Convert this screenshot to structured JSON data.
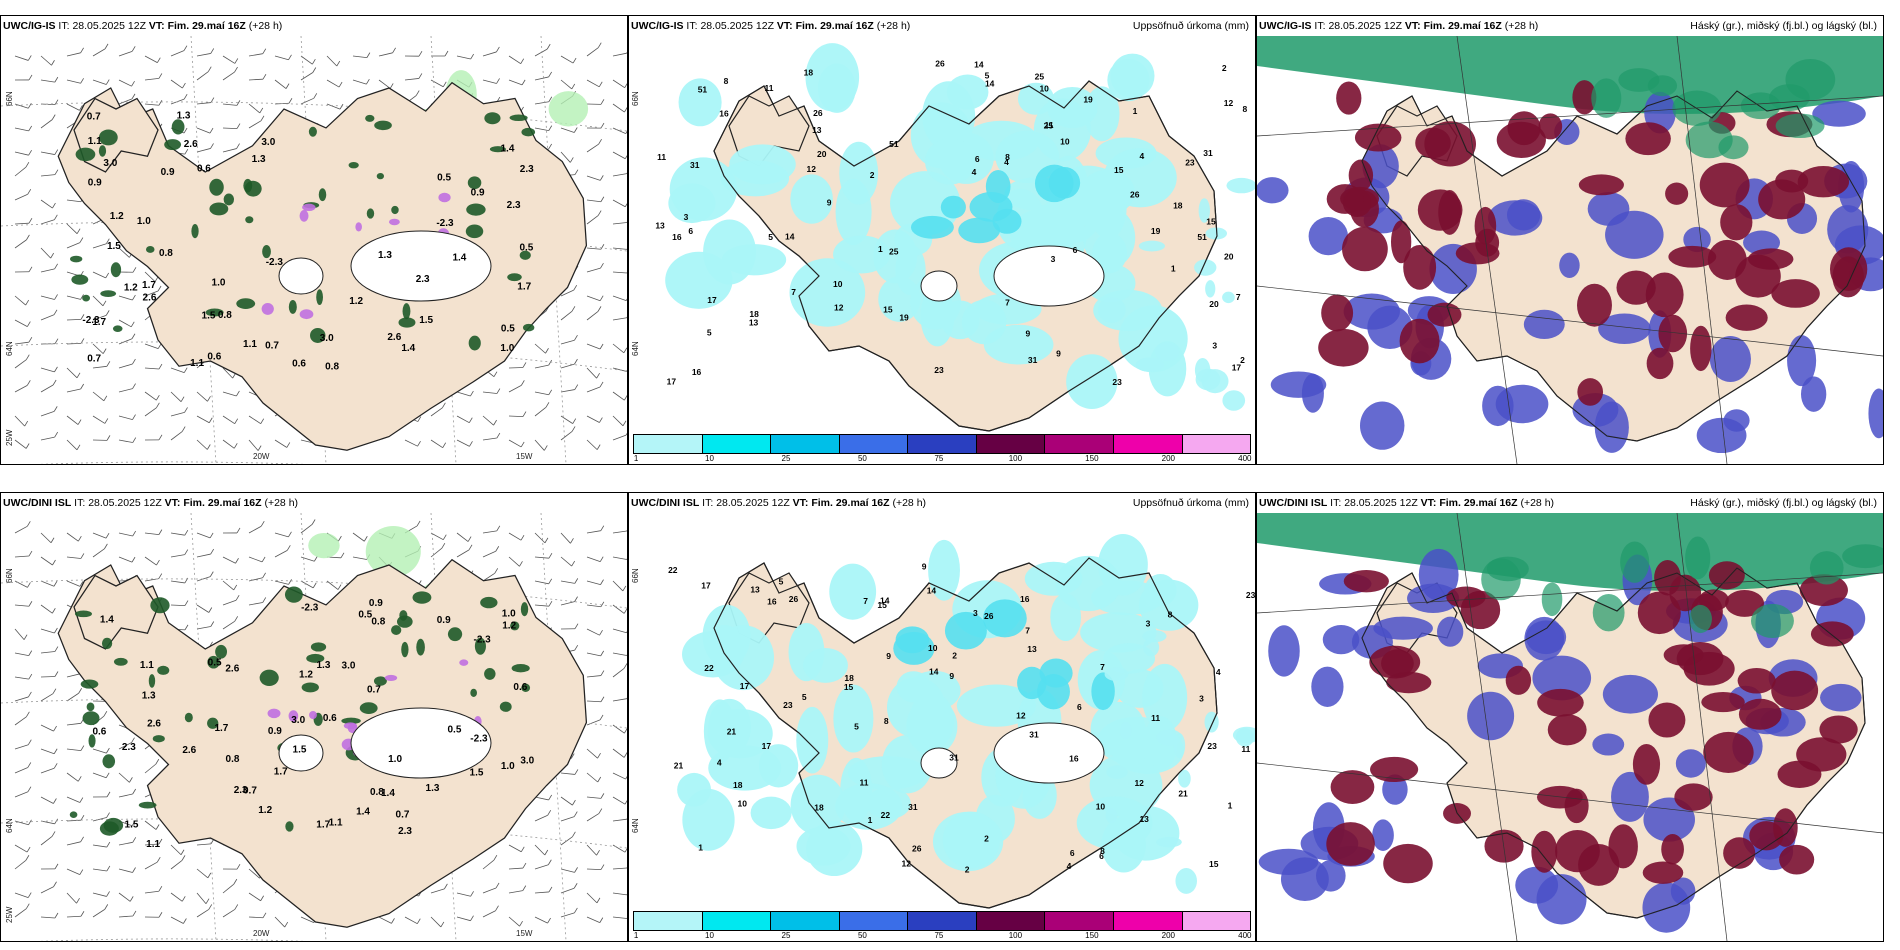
{
  "panels": [
    {
      "model": "UWC/IG-IS",
      "it_label": "IT:",
      "it": "28.05.2025 12Z",
      "vt_label": "VT:",
      "vt": "Fim. 29.maí 16Z",
      "lead": "(+28 h)",
      "right": ""
    },
    {
      "model": "UWC/IG-IS",
      "it_label": "IT:",
      "it": "28.05.2025 12Z",
      "vt_label": "VT:",
      "vt": "Fim. 29.maí 16Z",
      "lead": "(+28 h)",
      "right": "Uppsöfnuð úrkoma (mm)"
    },
    {
      "model": "UWC/IG-IS",
      "it_label": "IT:",
      "it": "28.05.2025 12Z",
      "vt_label": "VT:",
      "vt": "Fim. 29.maí 16Z",
      "lead": "(+28 h)",
      "right": "Háský (gr.), miðský (fj.bl.) og lágský (bl.)"
    },
    {
      "model": "UWC/DINI ISL",
      "it_label": "IT:",
      "it": "28.05.2025 12Z",
      "vt_label": "VT:",
      "vt": "Fim. 29.maí 16Z",
      "lead": "(+28 h)",
      "right": ""
    },
    {
      "model": "UWC/DINI ISL",
      "it_label": "IT:",
      "it": "28.05.2025 12Z",
      "vt_label": "VT:",
      "vt": "Fim. 29.maí 16Z",
      "lead": "(+28 h)",
      "right": "Uppsöfnuð úrkoma (mm)"
    },
    {
      "model": "UWC/DINI ISL",
      "it_label": "IT:",
      "it": "28.05.2025 12Z",
      "vt_label": "VT:",
      "vt": "Fim. 29.maí 16Z",
      "lead": "(+28 h)",
      "right": "Háský (gr.), miðský (fj.bl.) og lágský (bl.)"
    }
  ],
  "axes": {
    "lat_66": "66N",
    "lat_64": "64N",
    "lat_25": "25W",
    "lon_20": "20W",
    "lon_15": "15W"
  },
  "colorbar": {
    "labels": [
      "1",
      "10",
      "25",
      "50",
      "75",
      "100",
      "150",
      "200",
      "400"
    ],
    "colors": [
      "#b4f5f8",
      "#00e8f0",
      "#00bfe8",
      "#3a6ee8",
      "#2a3fc0",
      "#660044",
      "#aa0077",
      "#ee00aa",
      "#f5a8f0"
    ]
  },
  "colors": {
    "land": "#f3e2cf",
    "precip_light": "#aaf5f8",
    "precip_mid": "#55e0f0",
    "green_light": "#b4f0b4",
    "green_dark": "#1e5a28",
    "high_cloud": "#1f9a6a",
    "mid_cloud": "#7a1030",
    "low_cloud": "#4a50c8",
    "purple": "#c070e0"
  },
  "labels_precip_top": [
    "1",
    "2",
    "3",
    "4",
    "5",
    "6",
    "7",
    "8",
    "9",
    "10",
    "11",
    "12",
    "13",
    "14",
    "15",
    "16",
    "17",
    "18",
    "19",
    "20",
    "23",
    "25",
    "26",
    "31",
    "51"
  ],
  "labels_precip_bottom": [
    "1",
    "2",
    "3",
    "4",
    "5",
    "6",
    "7",
    "8",
    "9",
    "10",
    "11",
    "12",
    "13",
    "14",
    "15",
    "16",
    "17",
    "18",
    "21",
    "22",
    "23",
    "26",
    "31"
  ],
  "labels_wind": [
    "0.5",
    "0.6",
    "0.7",
    "0.8",
    "0.9",
    "1.0",
    "1.1",
    "1.2",
    "1.3",
    "1.4",
    "1.5",
    "1.7",
    "2.3",
    "2.6",
    "3.0",
    "-2.3"
  ]
}
